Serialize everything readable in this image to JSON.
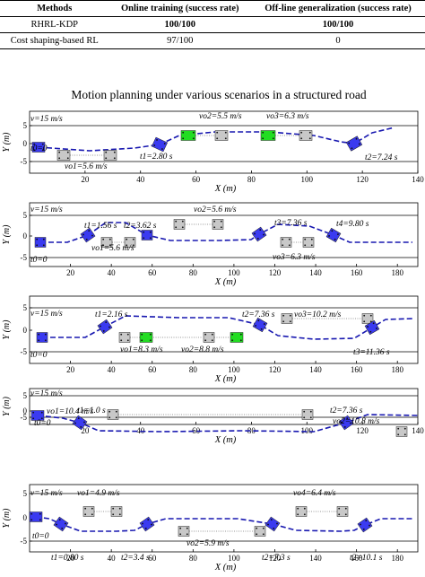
{
  "table": {
    "headers": [
      "Methods",
      "Online training (success rate)",
      "Off-line generalization (success rate)"
    ],
    "rows": [
      {
        "method": "RHRL-KDP",
        "online": "100/100",
        "offline": "100/100",
        "bold": true
      },
      {
        "method": "Cost shaping-based RL",
        "online": "97/100",
        "offline": "0",
        "bold": false
      }
    ]
  },
  "figure_title": "Motion planning under various scenarios in a structured road",
  "colors": {
    "ego": "#3a3af0",
    "obstacle": "#c8c8c8",
    "active_obstacle": "#22dd22",
    "trajectory": "#1818b0"
  },
  "panels": [
    {
      "xlabel": "X (m)",
      "ylabel": "Y (m)",
      "xticks": [
        "20",
        "40",
        "60",
        "80",
        "100",
        "120",
        "140"
      ],
      "yticks": [
        "5",
        "0",
        "-5"
      ],
      "labels": [
        "v=15 m/s",
        "t0=0",
        "vo1=5.6 m/s",
        "t1=2.80 s",
        "vo2=5.5 m/s",
        "vo3=6.3 m/s",
        "t2=7.24 s"
      ]
    },
    {
      "xlabel": "X (m)",
      "ylabel": "Y (m)",
      "xticks": [
        "20",
        "40",
        "60",
        "80",
        "100",
        "120",
        "140",
        "160",
        "180"
      ],
      "yticks": [
        "5",
        "0",
        "-5"
      ],
      "labels": [
        "v=15 m/s",
        "t0=0",
        "t1=1.56 s",
        "vo1=5.6 m/s",
        "t2=3.62 s",
        "vo2=5.6 m/s",
        "t3=7.36 s",
        "vo3=6.3 m/s",
        "t4=9.80 s"
      ]
    },
    {
      "xlabel": "X (m)",
      "ylabel": "Y (m)",
      "xticks": [
        "20",
        "40",
        "60",
        "80",
        "100",
        "120",
        "140",
        "160",
        "180"
      ],
      "yticks": [
        "5",
        "0",
        "-5"
      ],
      "labels": [
        "v=15 m/s",
        "t0=0",
        "t1=2.16 s",
        "vo1=8.3 m/s",
        "vo2=8.8 m/s",
        "t2=7.36 s",
        "vo3=10.2 m/s",
        "t3=11.36 s"
      ]
    },
    {
      "xlabel": "X (m)",
      "ylabel": "Y (m)",
      "xticks": [
        "20",
        "40",
        "60",
        "80",
        "100",
        "120",
        "140"
      ],
      "yticks": [
        "5",
        "0",
        "-5"
      ],
      "labels": [
        "v=15 m/s",
        "vo1=10.4 m/s",
        "t0=0",
        "t1=1.0 s",
        "t2=7.36 s",
        "vo2=10.8 m/s"
      ]
    },
    {
      "xlabel": "X (m)",
      "ylabel": "Y (m)",
      "xticks": [
        "20",
        "40",
        "60",
        "80",
        "100",
        "120",
        "140",
        "160",
        "180"
      ],
      "yticks": [
        "5",
        "0",
        "-5"
      ],
      "labels": [
        "v=15 m/s",
        "vo1=4.9 m/s",
        "vo4=6.4 m/s",
        "t0=0",
        "t1=0.80 s",
        "t2=3.4 s",
        "vo2=5.9 m/s",
        "t2=7.3 s",
        "t2=10.1 s"
      ]
    }
  ]
}
